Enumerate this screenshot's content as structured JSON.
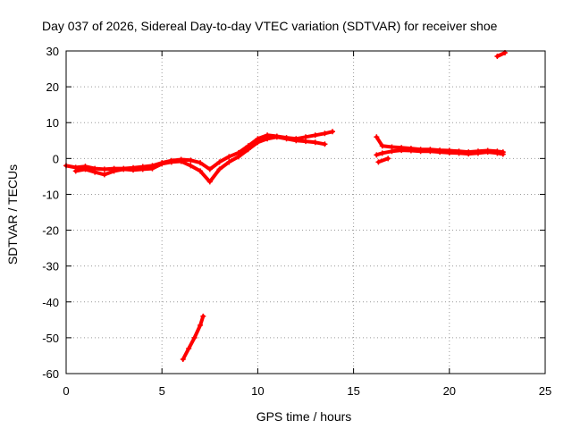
{
  "chart_data": {
    "type": "scatter",
    "title": "Day 037 of 2026, Sidereal Day-to-day VTEC variation (SDTVAR) for receiver shoe",
    "xlabel": "GPS time / hours",
    "ylabel": "SDTVAR / TECUs",
    "xlim": [
      0,
      25
    ],
    "ylim": [
      -60,
      30
    ],
    "xticks": [
      0,
      5,
      10,
      15,
      20,
      25
    ],
    "yticks": [
      -60,
      -50,
      -40,
      -30,
      -20,
      -10,
      0,
      10,
      20,
      30
    ],
    "grid": true,
    "series_color": "#ff0000",
    "series": [
      {
        "name": "band-1",
        "x": [
          0.0,
          0.5,
          1.0,
          1.5,
          2.0,
          2.5,
          3.0,
          3.5,
          4.0,
          4.5,
          5.0,
          5.5,
          6.0,
          6.5,
          7.0,
          7.5,
          8.0,
          8.5,
          9.0,
          9.5,
          10.0,
          10.5,
          11.0,
          11.5,
          12.0,
          12.5,
          13.0,
          13.5,
          13.9
        ],
        "y": [
          -2.0,
          -2.5,
          -2.2,
          -2.8,
          -3.0,
          -2.8,
          -2.8,
          -2.6,
          -2.3,
          -2.0,
          -1.2,
          -0.6,
          -0.3,
          -0.5,
          -1.2,
          -3.0,
          -1.0,
          0.5,
          1.6,
          3.5,
          5.5,
          6.5,
          6.2,
          5.8,
          5.5,
          6.0,
          6.5,
          7.0,
          7.5
        ]
      },
      {
        "name": "band-2",
        "x": [
          0.5,
          1.0,
          1.5,
          2.0,
          2.5,
          3.0,
          3.5,
          4.0,
          4.5,
          5.0,
          5.5,
          6.0,
          6.5,
          7.0,
          7.5,
          8.0,
          8.5,
          9.0,
          9.5,
          10.0,
          10.5,
          11.0,
          11.5,
          12.0,
          12.5,
          13.0,
          13.5
        ],
        "y": [
          -3.5,
          -3.0,
          -3.8,
          -4.5,
          -3.5,
          -3.0,
          -3.2,
          -3.0,
          -2.8,
          -1.5,
          -1.0,
          -0.8,
          -2.0,
          -3.5,
          -6.5,
          -3.0,
          -1.0,
          0.5,
          2.5,
          4.5,
          5.5,
          6.0,
          5.5,
          5.0,
          4.8,
          4.5,
          4.0
        ]
      },
      {
        "name": "band-3",
        "x": [
          16.2,
          16.5,
          17.0,
          17.5,
          18.0,
          18.5,
          19.0,
          19.5,
          20.0,
          20.5,
          21.0,
          21.5,
          22.0,
          22.5,
          22.8
        ],
        "y": [
          6.0,
          3.5,
          3.2,
          3.0,
          2.8,
          2.5,
          2.5,
          2.3,
          2.2,
          2.0,
          1.8,
          2.0,
          2.2,
          2.0,
          1.8
        ]
      },
      {
        "name": "band-4",
        "x": [
          16.2,
          16.5,
          17.0,
          17.5,
          18.0,
          18.5,
          19.0,
          19.5,
          20.0,
          20.5,
          21.0,
          21.5,
          22.0,
          22.5,
          22.8
        ],
        "y": [
          1.0,
          1.5,
          2.0,
          2.3,
          2.2,
          2.0,
          2.0,
          1.8,
          1.6,
          1.5,
          1.3,
          1.5,
          1.8,
          1.5,
          1.2
        ]
      },
      {
        "name": "band-5",
        "x": [
          16.3,
          16.8
        ],
        "y": [
          -1.0,
          0.0
        ]
      },
      {
        "name": "band-6",
        "x": [
          6.1,
          6.4,
          6.7,
          7.0,
          7.15
        ],
        "y": [
          -56.0,
          -53.0,
          -50.0,
          -46.5,
          -44.0
        ]
      },
      {
        "name": "band-7",
        "x": [
          22.5,
          22.9
        ],
        "y": [
          28.5,
          29.5
        ]
      }
    ]
  }
}
